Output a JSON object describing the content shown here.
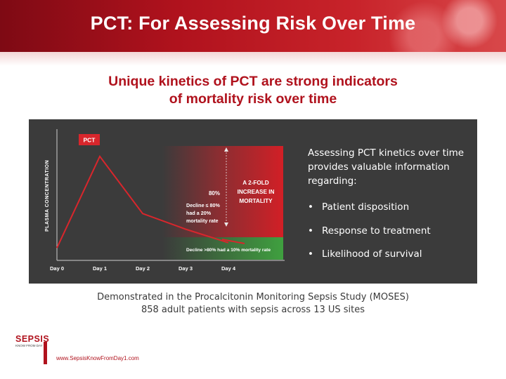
{
  "header": {
    "title": "PCT: For Assessing Risk Over Time"
  },
  "subtitle": {
    "line1": "Unique kinetics of PCT are strong indicators",
    "line2": "of mortality risk over time"
  },
  "side_panel": {
    "intro": "Assessing PCT kinetics over time provides valuable information regarding:",
    "bullets": [
      "Patient disposition",
      "Response to treatment",
      "Likelihood of survival"
    ]
  },
  "footer": {
    "line1": "Demonstrated in the Procalcitonin Monitoring Sepsis Study (MOSES)",
    "line2": "858 adult patients with sepsis across 13 US sites"
  },
  "logo": {
    "name": "SEPSIS",
    "tagline": "KNOW FROM DAY 1",
    "url": "www.SepsisKnowFromDay1.com"
  },
  "colors": {
    "brand_red": "#b0121d",
    "panel_bg": "#3b3b3b",
    "high_risk": "#c8232a",
    "low_risk": "#3fa03f"
  },
  "chart_data": {
    "type": "line",
    "ylabel": "PLASMA CONCENTRATION",
    "x": [
      "Day 0",
      "Day 1",
      "Day 2",
      "Day 3",
      "Day 4"
    ],
    "series": [
      {
        "name": "PCT",
        "values": [
          12,
          100,
          45,
          30,
          17
        ]
      }
    ],
    "ylim": [
      0,
      110
    ],
    "annotations": {
      "pct_label": "PCT",
      "pct_80": "80%",
      "increase_line1": "A 2-FOLD",
      "increase_line2": "INCREASE IN",
      "increase_line3": "MORTALITY",
      "decline_le_line1": "Decline ≤ 80%",
      "decline_le_line2": "had a 20%",
      "decline_le_line3": "mortality rate",
      "decline_gt": "Decline >80% had a 10% mortality rate"
    }
  }
}
